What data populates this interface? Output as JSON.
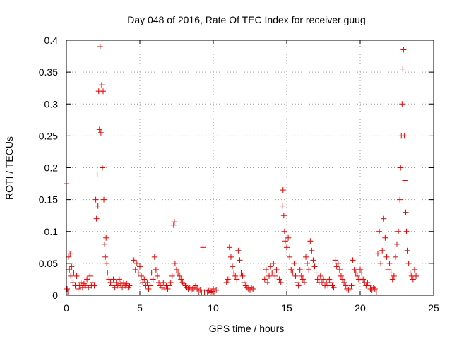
{
  "chart_data": {
    "type": "scatter",
    "title": "Day 048 of 2016, Rate Of TEC Index for receiver guug",
    "xlabel": "GPS time / hours",
    "ylabel": "ROTI / TECUs",
    "xlim": [
      0,
      25
    ],
    "ylim": [
      0,
      0.4
    ],
    "x_ticks": [
      0,
      5,
      10,
      15,
      20,
      25
    ],
    "x_tick_labels": [
      "0",
      "5",
      "10",
      "15",
      "20",
      "25"
    ],
    "y_ticks": [
      0,
      0.05,
      0.1,
      0.15,
      0.2,
      0.25,
      0.3,
      0.35,
      0.4
    ],
    "y_tick_labels": [
      "0",
      "0.05",
      "0.1",
      "0.15",
      "0.2",
      "0.25",
      "0.3",
      "0.35",
      "0.4"
    ],
    "grid": true,
    "marker": "+",
    "marker_color": "#e00000",
    "series": [
      {
        "points": [
          [
            0.0,
            0.175
          ],
          [
            0.05,
            0.01
          ],
          [
            0.1,
            0.005
          ],
          [
            0.15,
            0.06
          ],
          [
            0.2,
            0.04
          ],
          [
            0.25,
            0.065
          ],
          [
            0.3,
            0.03
          ],
          [
            0.35,
            0.045
          ],
          [
            0.45,
            0.02
          ],
          [
            0.5,
            0.035
          ],
          [
            0.6,
            0.015
          ],
          [
            0.7,
            0.03
          ],
          [
            0.8,
            0.01
          ],
          [
            0.9,
            0.015
          ],
          [
            1.0,
            0.02
          ],
          [
            1.1,
            0.012
          ],
          [
            1.2,
            0.018
          ],
          [
            1.3,
            0.015
          ],
          [
            1.4,
            0.025
          ],
          [
            1.5,
            0.012
          ],
          [
            1.6,
            0.03
          ],
          [
            1.7,
            0.015
          ],
          [
            1.8,
            0.02
          ],
          [
            1.9,
            0.015
          ],
          [
            2.0,
            0.15
          ],
          [
            2.05,
            0.12
          ],
          [
            2.1,
            0.19
          ],
          [
            2.15,
            0.14
          ],
          [
            2.2,
            0.32
          ],
          [
            2.25,
            0.26
          ],
          [
            2.3,
            0.39
          ],
          [
            2.35,
            0.255
          ],
          [
            2.4,
            0.33
          ],
          [
            2.45,
            0.2
          ],
          [
            2.5,
            0.32
          ],
          [
            2.55,
            0.15
          ],
          [
            2.6,
            0.08
          ],
          [
            2.65,
            0.06
          ],
          [
            2.7,
            0.09
          ],
          [
            2.75,
            0.05
          ],
          [
            2.8,
            0.035
          ],
          [
            2.9,
            0.025
          ],
          [
            3.0,
            0.02
          ],
          [
            3.1,
            0.015
          ],
          [
            3.2,
            0.025
          ],
          [
            3.3,
            0.012
          ],
          [
            3.4,
            0.02
          ],
          [
            3.5,
            0.015
          ],
          [
            3.6,
            0.025
          ],
          [
            3.7,
            0.018
          ],
          [
            3.8,
            0.012
          ],
          [
            3.9,
            0.02
          ],
          [
            4.0,
            0.015
          ],
          [
            4.1,
            0.018
          ],
          [
            4.2,
            0.012
          ],
          [
            4.3,
            0.015
          ],
          [
            4.6,
            0.055
          ],
          [
            4.7,
            0.04
          ],
          [
            4.8,
            0.05
          ],
          [
            4.9,
            0.035
          ],
          [
            5.0,
            0.045
          ],
          [
            5.1,
            0.03
          ],
          [
            5.2,
            0.02
          ],
          [
            5.3,
            0.025
          ],
          [
            5.4,
            0.015
          ],
          [
            5.5,
            0.02
          ],
          [
            5.6,
            0.01
          ],
          [
            5.7,
            0.015
          ],
          [
            5.8,
            0.035
          ],
          [
            5.9,
            0.025
          ],
          [
            6.0,
            0.06
          ],
          [
            6.1,
            0.04
          ],
          [
            6.2,
            0.03
          ],
          [
            6.3,
            0.02
          ],
          [
            6.4,
            0.015
          ],
          [
            6.5,
            0.012
          ],
          [
            6.6,
            0.02
          ],
          [
            6.7,
            0.01
          ],
          [
            6.8,
            0.015
          ],
          [
            6.9,
            0.01
          ],
          [
            7.0,
            0.015
          ],
          [
            7.1,
            0.02
          ],
          [
            7.2,
            0.03
          ],
          [
            7.3,
            0.11
          ],
          [
            7.35,
            0.115
          ],
          [
            7.4,
            0.05
          ],
          [
            7.5,
            0.04
          ],
          [
            7.6,
            0.035
          ],
          [
            7.7,
            0.03
          ],
          [
            7.8,
            0.025
          ],
          [
            7.9,
            0.02
          ],
          [
            8.0,
            0.018
          ],
          [
            8.1,
            0.015
          ],
          [
            8.2,
            0.012
          ],
          [
            8.3,
            0.01
          ],
          [
            8.4,
            0.012
          ],
          [
            8.5,
            0.008
          ],
          [
            8.6,
            0.01
          ],
          [
            8.7,
            0.012
          ],
          [
            8.8,
            0.015
          ],
          [
            8.9,
            0.01
          ],
          [
            9.0,
            0.005
          ],
          [
            9.1,
            0.008
          ],
          [
            9.2,
            0.005
          ],
          [
            9.3,
            0.075
          ],
          [
            9.4,
            0.005
          ],
          [
            9.5,
            0.008
          ],
          [
            9.6,
            0.005
          ],
          [
            9.7,
            0.007
          ],
          [
            9.8,
            0.004
          ],
          [
            9.9,
            0.006
          ],
          [
            10.0,
            0.01
          ],
          [
            10.1,
            0.005
          ],
          [
            10.2,
            0.008
          ],
          [
            10.9,
            0.02
          ],
          [
            11.0,
            0.025
          ],
          [
            11.1,
            0.075
          ],
          [
            11.2,
            0.06
          ],
          [
            11.3,
            0.045
          ],
          [
            11.4,
            0.035
          ],
          [
            11.5,
            0.03
          ],
          [
            11.6,
            0.025
          ],
          [
            11.7,
            0.07
          ],
          [
            11.8,
            0.055
          ],
          [
            11.9,
            0.035
          ],
          [
            12.0,
            0.03
          ],
          [
            12.1,
            0.02
          ],
          [
            12.2,
            0.015
          ],
          [
            12.3,
            0.012
          ],
          [
            12.4,
            0.01
          ],
          [
            12.5,
            0.008
          ],
          [
            12.6,
            0.012
          ],
          [
            12.7,
            0.01
          ],
          [
            13.5,
            0.025
          ],
          [
            13.6,
            0.04
          ],
          [
            13.7,
            0.02
          ],
          [
            13.8,
            0.03
          ],
          [
            13.9,
            0.045
          ],
          [
            14.0,
            0.035
          ],
          [
            14.1,
            0.05
          ],
          [
            14.2,
            0.03
          ],
          [
            14.3,
            0.04
          ],
          [
            14.4,
            0.035
          ],
          [
            14.5,
            0.025
          ],
          [
            14.6,
            0.02
          ],
          [
            14.7,
            0.14
          ],
          [
            14.75,
            0.165
          ],
          [
            14.8,
            0.125
          ],
          [
            14.85,
            0.1
          ],
          [
            14.9,
            0.085
          ],
          [
            15.0,
            0.075
          ],
          [
            15.1,
            0.09
          ],
          [
            15.2,
            0.06
          ],
          [
            15.3,
            0.04
          ],
          [
            15.4,
            0.035
          ],
          [
            15.5,
            0.05
          ],
          [
            15.6,
            0.03
          ],
          [
            15.7,
            0.02
          ],
          [
            15.8,
            0.015
          ],
          [
            15.9,
            0.04
          ],
          [
            16.0,
            0.03
          ],
          [
            16.1,
            0.025
          ],
          [
            16.2,
            0.02
          ],
          [
            16.3,
            0.06
          ],
          [
            16.4,
            0.05
          ],
          [
            16.5,
            0.04
          ],
          [
            16.6,
            0.085
          ],
          [
            16.7,
            0.07
          ],
          [
            16.8,
            0.055
          ],
          [
            16.9,
            0.045
          ],
          [
            17.0,
            0.035
          ],
          [
            17.1,
            0.025
          ],
          [
            17.2,
            0.02
          ],
          [
            17.3,
            0.03
          ],
          [
            17.4,
            0.02
          ],
          [
            17.5,
            0.025
          ],
          [
            17.6,
            0.015
          ],
          [
            17.7,
            0.02
          ],
          [
            17.8,
            0.015
          ],
          [
            17.9,
            0.025
          ],
          [
            18.0,
            0.02
          ],
          [
            18.1,
            0.015
          ],
          [
            18.2,
            0.012
          ],
          [
            18.3,
            0.055
          ],
          [
            18.4,
            0.045
          ],
          [
            18.5,
            0.05
          ],
          [
            18.6,
            0.04
          ],
          [
            18.7,
            0.03
          ],
          [
            18.8,
            0.025
          ],
          [
            18.9,
            0.02
          ],
          [
            19.0,
            0.015
          ],
          [
            19.1,
            0.01
          ],
          [
            19.2,
            0.008
          ],
          [
            19.3,
            0.01
          ],
          [
            19.4,
            0.015
          ],
          [
            19.5,
            0.055
          ],
          [
            19.6,
            0.04
          ],
          [
            19.7,
            0.035
          ],
          [
            19.8,
            0.03
          ],
          [
            19.9,
            0.025
          ],
          [
            20.0,
            0.04
          ],
          [
            20.1,
            0.035
          ],
          [
            20.2,
            0.025
          ],
          [
            20.3,
            0.02
          ],
          [
            20.4,
            0.015
          ],
          [
            20.5,
            0.02
          ],
          [
            20.6,
            0.015
          ],
          [
            20.7,
            0.01
          ],
          [
            20.8,
            0.008
          ],
          [
            20.9,
            0.012
          ],
          [
            21.0,
            0.01
          ],
          [
            21.1,
            0.005
          ],
          [
            21.2,
            0.065
          ],
          [
            21.3,
            0.1
          ],
          [
            21.4,
            0.05
          ],
          [
            21.5,
            0.07
          ],
          [
            21.6,
            0.12
          ],
          [
            21.7,
            0.09
          ],
          [
            21.8,
            0.06
          ],
          [
            21.9,
            0.04
          ],
          [
            22.0,
            0.05
          ],
          [
            22.1,
            0.035
          ],
          [
            22.2,
            0.025
          ],
          [
            22.3,
            0.03
          ],
          [
            22.4,
            0.06
          ],
          [
            22.5,
            0.08
          ],
          [
            22.6,
            0.1
          ],
          [
            22.7,
            0.15
          ],
          [
            22.75,
            0.2
          ],
          [
            22.8,
            0.25
          ],
          [
            22.85,
            0.3
          ],
          [
            22.9,
            0.355
          ],
          [
            22.95,
            0.385
          ],
          [
            23.0,
            0.25
          ],
          [
            23.05,
            0.18
          ],
          [
            23.1,
            0.13
          ],
          [
            23.15,
            0.1
          ],
          [
            23.2,
            0.07
          ],
          [
            23.3,
            0.05
          ],
          [
            23.4,
            0.035
          ],
          [
            23.5,
            0.03
          ],
          [
            23.6,
            0.025
          ],
          [
            23.7,
            0.04
          ],
          [
            23.8,
            0.03
          ]
        ]
      }
    ]
  }
}
